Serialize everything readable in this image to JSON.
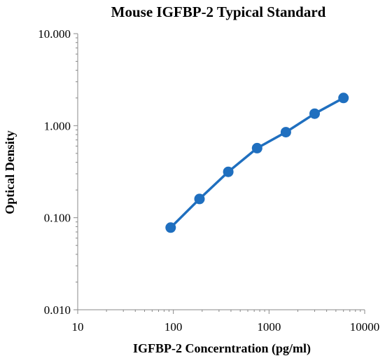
{
  "chart_data": {
    "type": "line",
    "title": "Mouse IGFBP-2 Typical Standard",
    "xlabel": "IGFBP-2 Concerntration (pg/ml)",
    "ylabel": "Optical Density",
    "x_scale": "log",
    "y_scale": "log",
    "xlim": [
      10,
      10000
    ],
    "ylim": [
      0.01,
      10
    ],
    "x_ticks": [
      "10",
      "100",
      "1000",
      "10000"
    ],
    "y_ticks": [
      "10.000",
      "1.000",
      "0.100",
      "0.010"
    ],
    "grid": false,
    "legend": "none",
    "series": [
      {
        "x": [
          93.75,
          187.5,
          375,
          750,
          1500,
          3000,
          6000
        ],
        "y": [
          0.078,
          0.16,
          0.315,
          0.57,
          0.85,
          1.35,
          2.0
        ],
        "color": "#1f6fbf",
        "marker": "circle"
      }
    ]
  }
}
